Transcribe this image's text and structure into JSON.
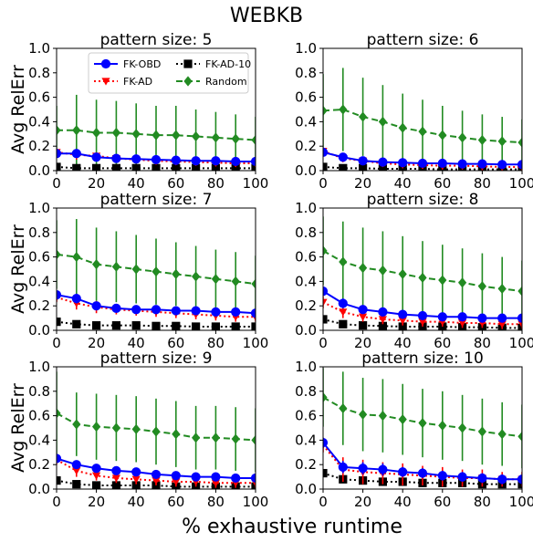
{
  "figure": {
    "title": "WEBKB",
    "xlabel": "% exhaustive runtime",
    "ylabel": "Avg RelErr"
  },
  "legend": {
    "placement": "top-center of first panel",
    "entries": [
      {
        "name": "FK-OBD",
        "color": "#0000ff",
        "marker": "circle",
        "linestyle": "solid"
      },
      {
        "name": "FK-AD-10",
        "color": "#000000",
        "marker": "square",
        "linestyle": "dotted"
      },
      {
        "name": "FK-AD",
        "color": "#ff0000",
        "marker": "triangle-down",
        "linestyle": "dotted"
      },
      {
        "name": "Random",
        "color": "#228b22",
        "marker": "diamond",
        "linestyle": "dashed"
      }
    ]
  },
  "chart_data": [
    {
      "type": "line",
      "title": "pattern size: 5",
      "x": [
        0,
        10,
        20,
        30,
        40,
        50,
        60,
        70,
        80,
        90,
        100
      ],
      "xlim": [
        0,
        100
      ],
      "ylim": [
        0,
        1.0
      ],
      "xticks": [
        0,
        20,
        40,
        60,
        80,
        100
      ],
      "yticks": [
        0.0,
        0.2,
        0.4,
        0.6,
        0.8,
        1.0
      ],
      "series": [
        {
          "name": "FK-OBD",
          "values": [
            0.14,
            0.14,
            0.11,
            0.1,
            0.095,
            0.09,
            0.085,
            0.08,
            0.08,
            0.075,
            0.075
          ],
          "err": [
            0.02,
            0.03,
            0.02,
            0.02,
            0.02,
            0.02,
            0.02,
            0.02,
            0.02,
            0.02,
            0.02
          ]
        },
        {
          "name": "FK-AD",
          "values": [
            0.15,
            0.13,
            0.12,
            0.1,
            0.09,
            0.08,
            0.075,
            0.07,
            0.065,
            0.06,
            0.06
          ],
          "err": [
            0.03,
            0.04,
            0.03,
            0.03,
            0.03,
            0.03,
            0.03,
            0.03,
            0.03,
            0.03,
            0.03
          ]
        },
        {
          "name": "FK-AD-10",
          "values": [
            0.03,
            0.02,
            0.02,
            0.02,
            0.02,
            0.02,
            0.02,
            0.02,
            0.02,
            0.02,
            0.02
          ],
          "err": [
            0.01,
            0.01,
            0.01,
            0.01,
            0.01,
            0.01,
            0.01,
            0.01,
            0.01,
            0.01,
            0.01
          ]
        },
        {
          "name": "Random",
          "values": [
            0.33,
            0.33,
            0.31,
            0.31,
            0.3,
            0.29,
            0.29,
            0.28,
            0.27,
            0.26,
            0.25
          ],
          "err": [
            0.2,
            0.29,
            0.27,
            0.26,
            0.25,
            0.24,
            0.24,
            0.22,
            0.21,
            0.2,
            0.19
          ]
        }
      ]
    },
    {
      "type": "line",
      "title": "pattern size: 6",
      "x": [
        0,
        10,
        20,
        30,
        40,
        50,
        60,
        70,
        80,
        90,
        100
      ],
      "xlim": [
        0,
        100
      ],
      "ylim": [
        0,
        1.0
      ],
      "xticks": [
        0,
        20,
        40,
        60,
        80,
        100
      ],
      "yticks": [
        0.0,
        0.2,
        0.4,
        0.6,
        0.8,
        1.0
      ],
      "series": [
        {
          "name": "FK-OBD",
          "values": [
            0.15,
            0.11,
            0.08,
            0.07,
            0.065,
            0.06,
            0.06,
            0.055,
            0.055,
            0.05,
            0.05
          ],
          "err": [
            0.02,
            0.02,
            0.02,
            0.02,
            0.02,
            0.02,
            0.02,
            0.02,
            0.02,
            0.02,
            0.02
          ]
        },
        {
          "name": "FK-AD",
          "values": [
            0.16,
            0.1,
            0.08,
            0.06,
            0.05,
            0.045,
            0.04,
            0.04,
            0.035,
            0.03,
            0.03
          ],
          "err": [
            0.03,
            0.03,
            0.03,
            0.03,
            0.03,
            0.03,
            0.03,
            0.03,
            0.03,
            0.03,
            0.03
          ]
        },
        {
          "name": "FK-AD-10",
          "values": [
            0.03,
            0.02,
            0.02,
            0.015,
            0.015,
            0.015,
            0.01,
            0.01,
            0.01,
            0.01,
            0.01
          ],
          "err": [
            0.01,
            0.01,
            0.01,
            0.01,
            0.01,
            0.01,
            0.01,
            0.01,
            0.01,
            0.01,
            0.01
          ]
        },
        {
          "name": "Random",
          "values": [
            0.49,
            0.5,
            0.44,
            0.4,
            0.35,
            0.32,
            0.29,
            0.27,
            0.25,
            0.24,
            0.23
          ],
          "err": [
            0.3,
            0.34,
            0.32,
            0.3,
            0.28,
            0.26,
            0.24,
            0.22,
            0.21,
            0.2,
            0.19
          ]
        }
      ]
    },
    {
      "type": "line",
      "title": "pattern size: 7",
      "x": [
        0,
        10,
        20,
        30,
        40,
        50,
        60,
        70,
        80,
        90,
        100
      ],
      "xlim": [
        0,
        100
      ],
      "ylim": [
        0,
        1.0
      ],
      "xticks": [
        0,
        20,
        40,
        60,
        80,
        100
      ],
      "yticks": [
        0.0,
        0.2,
        0.4,
        0.6,
        0.8,
        1.0
      ],
      "series": [
        {
          "name": "FK-OBD",
          "values": [
            0.29,
            0.26,
            0.2,
            0.18,
            0.17,
            0.17,
            0.16,
            0.16,
            0.15,
            0.15,
            0.14
          ],
          "err": [
            0.03,
            0.04,
            0.03,
            0.03,
            0.03,
            0.03,
            0.03,
            0.03,
            0.03,
            0.03,
            0.03
          ]
        },
        {
          "name": "FK-AD",
          "values": [
            0.27,
            0.22,
            0.19,
            0.17,
            0.16,
            0.15,
            0.14,
            0.13,
            0.12,
            0.11,
            0.11
          ],
          "err": [
            0.04,
            0.05,
            0.05,
            0.04,
            0.04,
            0.04,
            0.04,
            0.04,
            0.04,
            0.04,
            0.04
          ]
        },
        {
          "name": "FK-AD-10",
          "values": [
            0.07,
            0.05,
            0.04,
            0.04,
            0.04,
            0.035,
            0.035,
            0.03,
            0.03,
            0.03,
            0.03
          ],
          "err": [
            0.02,
            0.02,
            0.02,
            0.02,
            0.02,
            0.02,
            0.02,
            0.02,
            0.02,
            0.02,
            0.02
          ]
        },
        {
          "name": "Random",
          "values": [
            0.62,
            0.6,
            0.54,
            0.52,
            0.5,
            0.48,
            0.46,
            0.44,
            0.42,
            0.4,
            0.38
          ],
          "err": [
            0.28,
            0.31,
            0.3,
            0.29,
            0.28,
            0.27,
            0.26,
            0.25,
            0.24,
            0.24,
            0.23
          ]
        }
      ]
    },
    {
      "type": "line",
      "title": "pattern size: 8",
      "x": [
        0,
        10,
        20,
        30,
        40,
        50,
        60,
        70,
        80,
        90,
        100
      ],
      "xlim": [
        0,
        100
      ],
      "ylim": [
        0,
        1.0
      ],
      "xticks": [
        0,
        20,
        40,
        60,
        80,
        100
      ],
      "yticks": [
        0.0,
        0.2,
        0.4,
        0.6,
        0.8,
        1.0
      ],
      "series": [
        {
          "name": "FK-OBD",
          "values": [
            0.32,
            0.22,
            0.17,
            0.15,
            0.13,
            0.12,
            0.11,
            0.11,
            0.1,
            0.1,
            0.1
          ],
          "err": [
            0.03,
            0.04,
            0.03,
            0.03,
            0.03,
            0.03,
            0.03,
            0.03,
            0.03,
            0.03,
            0.03
          ]
        },
        {
          "name": "FK-AD",
          "values": [
            0.23,
            0.15,
            0.11,
            0.09,
            0.08,
            0.07,
            0.07,
            0.06,
            0.06,
            0.05,
            0.05
          ],
          "err": [
            0.05,
            0.05,
            0.04,
            0.04,
            0.04,
            0.04,
            0.04,
            0.04,
            0.04,
            0.04,
            0.04
          ]
        },
        {
          "name": "FK-AD-10",
          "values": [
            0.09,
            0.05,
            0.04,
            0.035,
            0.03,
            0.03,
            0.03,
            0.025,
            0.025,
            0.02,
            0.02
          ],
          "err": [
            0.02,
            0.02,
            0.02,
            0.02,
            0.02,
            0.02,
            0.02,
            0.02,
            0.02,
            0.02,
            0.02
          ]
        },
        {
          "name": "Random",
          "values": [
            0.65,
            0.56,
            0.51,
            0.49,
            0.46,
            0.43,
            0.41,
            0.39,
            0.36,
            0.34,
            0.32
          ],
          "err": [
            0.28,
            0.33,
            0.33,
            0.32,
            0.31,
            0.3,
            0.29,
            0.28,
            0.27,
            0.26,
            0.25
          ]
        }
      ]
    },
    {
      "type": "line",
      "title": "pattern size: 9",
      "x": [
        0,
        10,
        20,
        30,
        40,
        50,
        60,
        70,
        80,
        90,
        100
      ],
      "xlim": [
        0,
        100
      ],
      "ylim": [
        0,
        1.0
      ],
      "xticks": [
        0,
        20,
        40,
        60,
        80,
        100
      ],
      "yticks": [
        0.0,
        0.2,
        0.4,
        0.6,
        0.8,
        1.0
      ],
      "series": [
        {
          "name": "FK-OBD",
          "values": [
            0.25,
            0.2,
            0.17,
            0.15,
            0.14,
            0.12,
            0.11,
            0.1,
            0.1,
            0.09,
            0.09
          ],
          "err": [
            0.03,
            0.03,
            0.03,
            0.03,
            0.03,
            0.03,
            0.03,
            0.03,
            0.03,
            0.03,
            0.03
          ]
        },
        {
          "name": "FK-AD",
          "values": [
            0.24,
            0.15,
            0.11,
            0.09,
            0.08,
            0.07,
            0.06,
            0.06,
            0.05,
            0.05,
            0.05
          ],
          "err": [
            0.04,
            0.05,
            0.04,
            0.04,
            0.04,
            0.04,
            0.04,
            0.04,
            0.04,
            0.04,
            0.04
          ]
        },
        {
          "name": "FK-AD-10",
          "values": [
            0.07,
            0.04,
            0.03,
            0.03,
            0.03,
            0.03,
            0.02,
            0.02,
            0.02,
            0.02,
            0.02
          ],
          "err": [
            0.02,
            0.02,
            0.02,
            0.02,
            0.02,
            0.02,
            0.02,
            0.02,
            0.02,
            0.02,
            0.02
          ]
        },
        {
          "name": "Random",
          "values": [
            0.62,
            0.53,
            0.51,
            0.5,
            0.49,
            0.47,
            0.45,
            0.42,
            0.42,
            0.41,
            0.4
          ],
          "err": [
            0.34,
            0.26,
            0.27,
            0.27,
            0.27,
            0.27,
            0.27,
            0.26,
            0.26,
            0.26,
            0.26
          ]
        }
      ]
    },
    {
      "type": "line",
      "title": "pattern size: 10",
      "x": [
        0,
        10,
        20,
        30,
        40,
        50,
        60,
        70,
        80,
        90,
        100
      ],
      "xlim": [
        0,
        100
      ],
      "ylim": [
        0,
        1.0
      ],
      "xticks": [
        0,
        20,
        40,
        60,
        80,
        100
      ],
      "yticks": [
        0.0,
        0.2,
        0.4,
        0.6,
        0.8,
        1.0
      ],
      "series": [
        {
          "name": "FK-OBD",
          "values": [
            0.38,
            0.18,
            0.17,
            0.16,
            0.14,
            0.13,
            0.11,
            0.1,
            0.09,
            0.08,
            0.08
          ],
          "err": [
            0.04,
            0.05,
            0.05,
            0.05,
            0.04,
            0.04,
            0.04,
            0.04,
            0.04,
            0.04,
            0.04
          ]
        },
        {
          "name": "FK-AD",
          "values": [
            0.36,
            0.16,
            0.14,
            0.13,
            0.12,
            0.11,
            0.1,
            0.09,
            0.09,
            0.08,
            0.08
          ],
          "err": [
            0.06,
            0.1,
            0.1,
            0.09,
            0.09,
            0.08,
            0.08,
            0.07,
            0.07,
            0.06,
            0.06
          ]
        },
        {
          "name": "FK-AD-10",
          "values": [
            0.13,
            0.08,
            0.07,
            0.06,
            0.06,
            0.05,
            0.05,
            0.05,
            0.04,
            0.04,
            0.04
          ],
          "err": [
            0.03,
            0.03,
            0.03,
            0.03,
            0.03,
            0.03,
            0.03,
            0.03,
            0.03,
            0.03,
            0.03
          ]
        },
        {
          "name": "Random",
          "values": [
            0.75,
            0.66,
            0.61,
            0.6,
            0.57,
            0.54,
            0.52,
            0.5,
            0.47,
            0.45,
            0.43
          ],
          "err": [
            0.24,
            0.3,
            0.3,
            0.3,
            0.29,
            0.28,
            0.28,
            0.27,
            0.27,
            0.26,
            0.26
          ]
        }
      ]
    }
  ]
}
